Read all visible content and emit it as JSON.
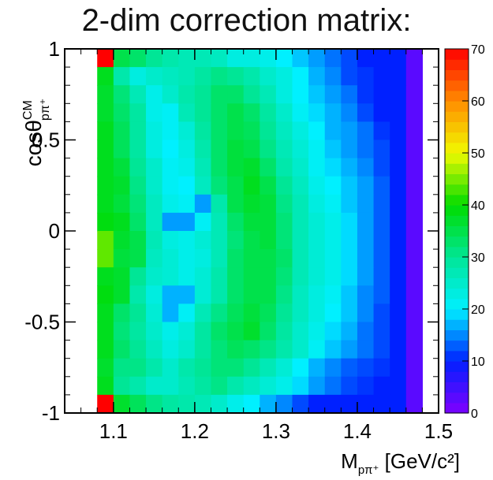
{
  "chart_data": {
    "type": "heatmap",
    "title": "2-dim correction matrix:",
    "xlabel": {
      "main": "M",
      "sub": "pπ⁺",
      "unit": " [GeV/c²]"
    },
    "ylabel": {
      "main": "cosθ",
      "sup": "CM",
      "sub": "pπ⁺"
    },
    "xlim": [
      1.04,
      1.5
    ],
    "ylim": [
      -1,
      1
    ],
    "x_ticks": [
      {
        "v": 1.1,
        "label": "1.1"
      },
      {
        "v": 1.2,
        "label": "1.2"
      },
      {
        "v": 1.3,
        "label": "1.3"
      },
      {
        "v": 1.4,
        "label": "1.4"
      },
      {
        "v": 1.5,
        "label": "1.5"
      }
    ],
    "y_ticks": [
      {
        "v": -1,
        "label": "-1"
      },
      {
        "v": -0.5,
        "label": "-0.5"
      },
      {
        "v": 0,
        "label": "0"
      },
      {
        "v": 0.5,
        "label": "0.5"
      },
      {
        "v": 1,
        "label": "1"
      }
    ],
    "colorbar": {
      "zlim": [
        0,
        70
      ],
      "ticks": [
        {
          "v": 0,
          "label": "0"
        },
        {
          "v": 10,
          "label": "10"
        },
        {
          "v": 20,
          "label": "20"
        },
        {
          "v": 30,
          "label": "30"
        },
        {
          "v": 40,
          "label": "40"
        },
        {
          "v": 50,
          "label": "50"
        },
        {
          "v": 60,
          "label": "60"
        },
        {
          "v": 70,
          "label": "70"
        }
      ]
    },
    "x_bin_edges": [
      1.08,
      1.1,
      1.12,
      1.14,
      1.16,
      1.18,
      1.2,
      1.22,
      1.24,
      1.26,
      1.28,
      1.3,
      1.32,
      1.34,
      1.36,
      1.38,
      1.4,
      1.42,
      1.44,
      1.46,
      1.48
    ],
    "y_bin_count": 20,
    "z_rows_top_to_bottom": [
      [
        70,
        35,
        33,
        30,
        28,
        27,
        27,
        26,
        23,
        23,
        22,
        20,
        18,
        16,
        14,
        12,
        10,
        10,
        10,
        3
      ],
      [
        38,
        28,
        23,
        25,
        26,
        27,
        29,
        31,
        30,
        28,
        25,
        23,
        20,
        17,
        15,
        12,
        11,
        10,
        10,
        3
      ],
      [
        37,
        32,
        27,
        22,
        25,
        28,
        30,
        33,
        33,
        30,
        27,
        23,
        20,
        18,
        16,
        14,
        11,
        10,
        10,
        3
      ],
      [
        37,
        33,
        29,
        22,
        21,
        27,
        30,
        33,
        35,
        33,
        29,
        25,
        21,
        19,
        17,
        15,
        12,
        10,
        10,
        3
      ],
      [
        38,
        34,
        29,
        23,
        21,
        24,
        29,
        33,
        35,
        34,
        30,
        26,
        23,
        20,
        17,
        16,
        14,
        11,
        10,
        3
      ],
      [
        38,
        34,
        29,
        23,
        20,
        23,
        28,
        33,
        36,
        35,
        31,
        27,
        24,
        21,
        18,
        16,
        14,
        12,
        10,
        3
      ],
      [
        38,
        36,
        30,
        25,
        21,
        22,
        27,
        33,
        36,
        37,
        33,
        28,
        25,
        21,
        19,
        17,
        15,
        12,
        10,
        3
      ],
      [
        38,
        37,
        31,
        25,
        21,
        20,
        26,
        32,
        35,
        38,
        35,
        30,
        26,
        22,
        20,
        18,
        16,
        13,
        10,
        3
      ],
      [
        38,
        36,
        32,
        26,
        22,
        21,
        16,
        28,
        35,
        37,
        36,
        31,
        27,
        23,
        21,
        18,
        16,
        13,
        10,
        3
      ],
      [
        39,
        38,
        33,
        26,
        16,
        16,
        21,
        27,
        33,
        36,
        36,
        32,
        27,
        24,
        22,
        19,
        16,
        13,
        10,
        3
      ],
      [
        44,
        37,
        35,
        27,
        23,
        22,
        24,
        27,
        32,
        35,
        36,
        32,
        27,
        24,
        22,
        19,
        16,
        13,
        10,
        3
      ],
      [
        44,
        36,
        35,
        26,
        24,
        22,
        23,
        27,
        33,
        35,
        35,
        33,
        27,
        24,
        22,
        19,
        16,
        13,
        10,
        3
      ],
      [
        38,
        37,
        30,
        25,
        24,
        22,
        24,
        28,
        33,
        35,
        35,
        32,
        27,
        24,
        22,
        19,
        16,
        13,
        10,
        3
      ],
      [
        39,
        37,
        28,
        23,
        17,
        17,
        24,
        28,
        33,
        35,
        35,
        31,
        26,
        23,
        21,
        18,
        15,
        13,
        10,
        3
      ],
      [
        38,
        33,
        30,
        24,
        17,
        21,
        27,
        31,
        34,
        36,
        34,
        30,
        26,
        23,
        20,
        18,
        15,
        12,
        10,
        3
      ],
      [
        38,
        32,
        29,
        25,
        22,
        24,
        29,
        33,
        35,
        37,
        33,
        29,
        25,
        22,
        19,
        17,
        14,
        12,
        10,
        3
      ],
      [
        38,
        33,
        30,
        26,
        23,
        25,
        29,
        32,
        34,
        33,
        31,
        28,
        25,
        21,
        18,
        16,
        14,
        12,
        10,
        3
      ],
      [
        37,
        31,
        31,
        28,
        25,
        28,
        30,
        32,
        32,
        30,
        27,
        24,
        20,
        17,
        15,
        13,
        12,
        11,
        10,
        3
      ],
      [
        38,
        30,
        28,
        25,
        25,
        27,
        29,
        31,
        28,
        26,
        24,
        22,
        19,
        16,
        14,
        12,
        11,
        10,
        10,
        3
      ],
      [
        70,
        37,
        34,
        31,
        29,
        28,
        27,
        25,
        22,
        20,
        17,
        15,
        12,
        10,
        10,
        10,
        10,
        10,
        10,
        3
      ]
    ]
  }
}
